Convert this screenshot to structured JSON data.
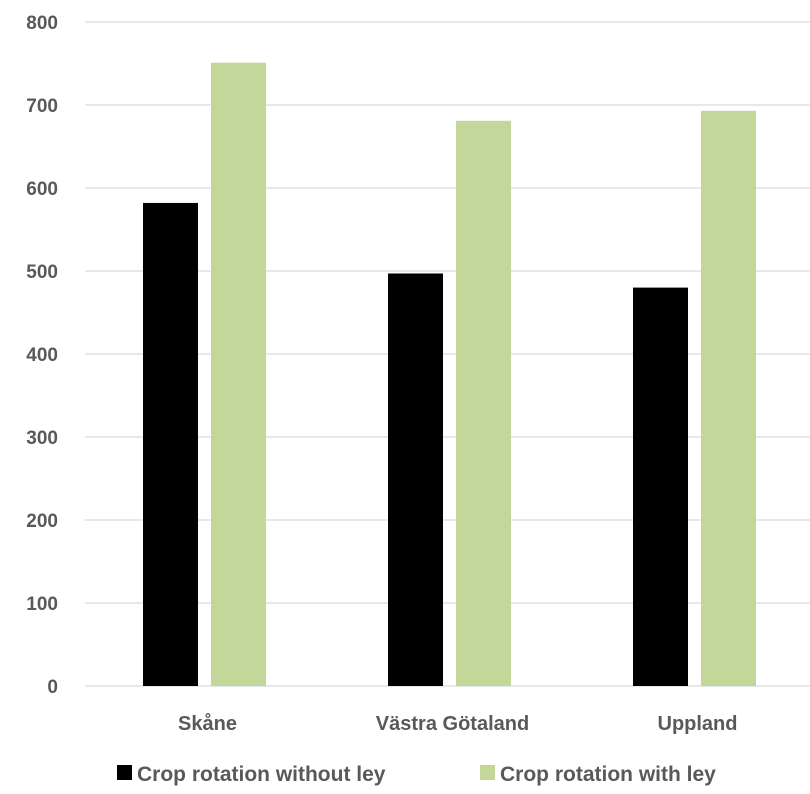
{
  "chart_data": {
    "type": "bar",
    "title": "",
    "xlabel": "",
    "ylabel": "",
    "categories": [
      "Skåne",
      "Västra Götaland",
      "Uppland"
    ],
    "series": [
      {
        "name": "Crop rotation without ley",
        "color": "#000000",
        "values": [
          582,
          497,
          480
        ]
      },
      {
        "name": "Crop rotation with ley",
        "color": "#c4d79b",
        "values": [
          751,
          681,
          693
        ]
      }
    ],
    "ylim": [
      0,
      800
    ],
    "yticks": [
      "0",
      "100",
      "200",
      "300",
      "400",
      "500",
      "600",
      "700",
      "800"
    ],
    "grid": true,
    "legend_position": "bottom"
  }
}
